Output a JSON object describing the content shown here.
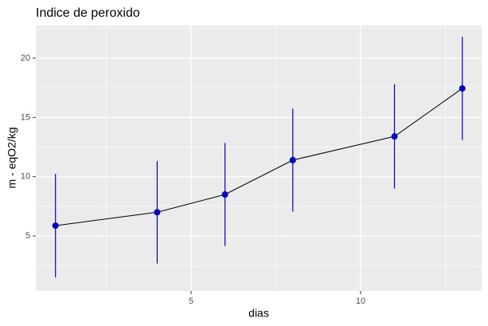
{
  "chart_data": {
    "type": "line",
    "title": "Indice de peroxido",
    "x_label": "dias",
    "y_label": "m - eqO2/kg",
    "x": [
      1,
      4,
      6,
      8,
      11,
      13
    ],
    "series": [
      {
        "values": [
          5.87,
          7.0,
          8.5,
          11.4,
          13.4,
          17.45
        ],
        "errors": [
          4.37,
          4.33,
          4.35,
          4.35,
          4.4,
          4.35
        ],
        "color": "#0000cc",
        "line_color": "#000000"
      }
    ],
    "xlim": [
      0.42,
      13.57
    ],
    "xticks": [
      5,
      10
    ],
    "x_minor_grid": [
      2.5,
      7.5,
      12.5
    ],
    "ylim": [
      0.36,
      22.76
    ],
    "yticks": [
      5,
      10,
      15,
      20
    ],
    "y_minor_grid": [
      2.5,
      7.5,
      12.5,
      17.5,
      22.5
    ],
    "grid": true
  }
}
